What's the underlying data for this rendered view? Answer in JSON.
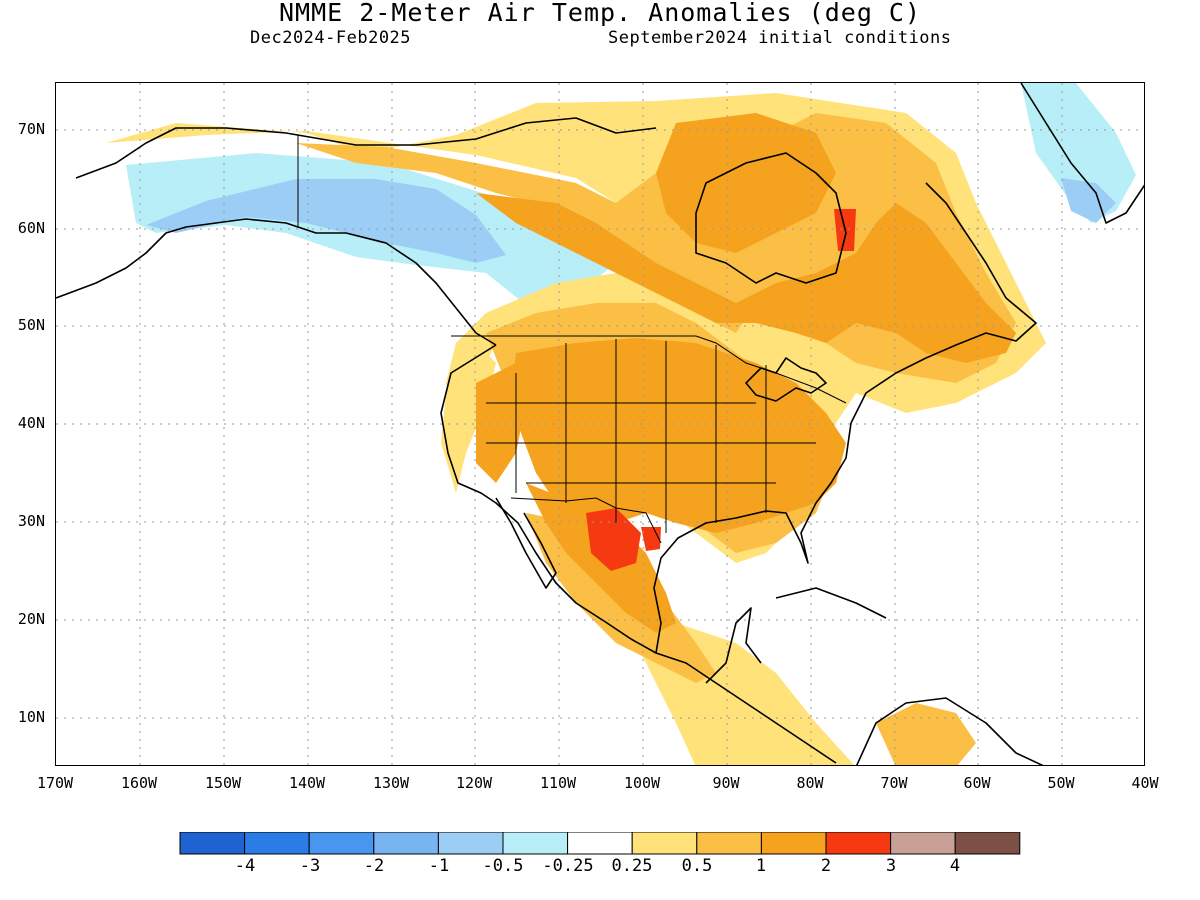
{
  "header": {
    "title": "NMME 2-Meter Air Temp. Anomalies (deg C)",
    "period": "Dec2024-Feb2025",
    "init": "September2024 initial conditions"
  },
  "axes": {
    "lat_ticks": [
      "70N",
      "60N",
      "50N",
      "40N",
      "30N",
      "20N",
      "10N"
    ],
    "lon_ticks": [
      "170W",
      "160W",
      "150W",
      "140W",
      "130W",
      "120W",
      "110W",
      "100W",
      "90W",
      "80W",
      "70W",
      "60W",
      "50W",
      "40W"
    ],
    "lat_range": [
      5,
      75
    ],
    "lon_range": [
      -170,
      -40
    ]
  },
  "colorbar": {
    "labels": [
      "-4",
      "-3",
      "-2",
      "-1",
      "-0.5",
      "-0.25",
      "0.25",
      "0.5",
      "1",
      "2",
      "3",
      "4"
    ],
    "colors": [
      "#1f63d0",
      "#2a7de6",
      "#4896ef",
      "#78b4f2",
      "#9ccdf4",
      "#b8eef8",
      "#ffffff",
      "#ffe27a",
      "#fbbf45",
      "#f5a21e",
      "#f53a12",
      "#c9a095",
      "#7d5045"
    ]
  },
  "legend_meaning": {
    "warm_strong": "#f53a12",
    "warm": "#f5a21e",
    "mild_warm": "#fbbf45",
    "slight_warm": "#ffe27a",
    "slight_cool": "#b8eef8",
    "cool": "#9ccdf4"
  }
}
